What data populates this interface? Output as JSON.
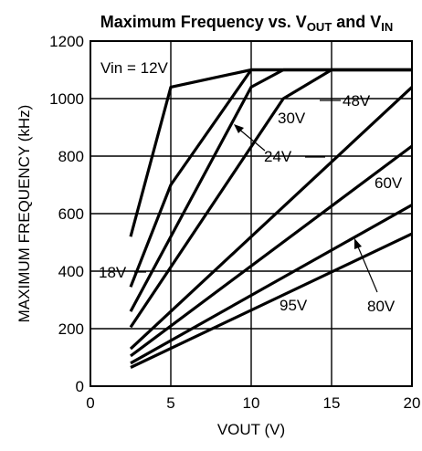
{
  "chart_data": {
    "type": "line",
    "title": {
      "prefix": "Maximum Frequency vs. V",
      "sub1": "OUT",
      "middle": " and V",
      "sub2": "IN"
    },
    "xlabel": "VOUT (V)",
    "ylabel": "MAXIMUM FREQUENCY (kHz)",
    "xlim": [
      0,
      20
    ],
    "ylim": [
      0,
      1200
    ],
    "xticks": [
      0,
      5,
      10,
      15,
      20
    ],
    "yticks": [
      0,
      200,
      400,
      600,
      800,
      1000,
      1200
    ],
    "grid": true,
    "series": [
      {
        "name": "Vin = 12V",
        "points": [
          [
            2.5,
            520
          ],
          [
            5,
            1040
          ],
          [
            10,
            1100
          ],
          [
            20,
            1100
          ]
        ]
      },
      {
        "name": "18V",
        "points": [
          [
            2.5,
            345
          ],
          [
            5,
            700
          ],
          [
            10,
            1100
          ],
          [
            20,
            1100
          ]
        ]
      },
      {
        "name": "24V",
        "points": [
          [
            2.5,
            260
          ],
          [
            10,
            1040
          ],
          [
            12,
            1100
          ],
          [
            20,
            1100
          ]
        ]
      },
      {
        "name": "30V",
        "points": [
          [
            2.5,
            205
          ],
          [
            12,
            1000
          ],
          [
            15,
            1100
          ],
          [
            20,
            1100
          ]
        ]
      },
      {
        "name": "48V",
        "points": [
          [
            2.5,
            130
          ],
          [
            20,
            1040
          ]
        ]
      },
      {
        "name": "60V",
        "points": [
          [
            2.5,
            105
          ],
          [
            20,
            835
          ]
        ]
      },
      {
        "name": "80V",
        "points": [
          [
            2.5,
            80
          ],
          [
            20,
            630
          ]
        ]
      },
      {
        "name": "95V",
        "points": [
          [
            2.5,
            65
          ],
          [
            20,
            530
          ]
        ]
      }
    ]
  }
}
